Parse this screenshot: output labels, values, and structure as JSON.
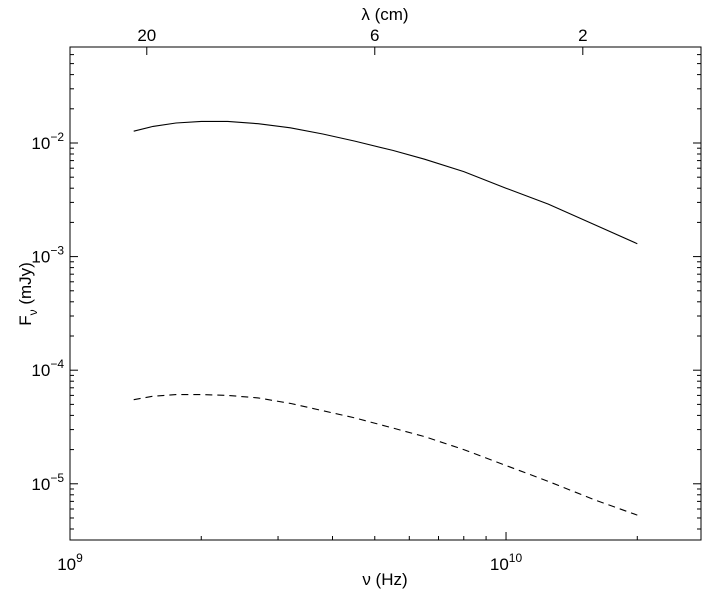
{
  "chart_data": {
    "type": "line",
    "x_scale": "log",
    "y_scale": "log",
    "xlabel": "ν (Hz)",
    "ylabel": "F",
    "ylabel_sub": "ν",
    "ylabel_unit": " (mJy)",
    "top_axis_label": "λ (cm)",
    "xlim": [
      1000000000.0,
      28000000000.0
    ],
    "ylim": [
      3.2e-06,
      0.07
    ],
    "x_ticks": [
      {
        "value": 1000000000.0,
        "base": "10",
        "exp": "9"
      },
      {
        "value": 10000000000.0,
        "base": "10",
        "exp": "10"
      }
    ],
    "y_ticks": [
      {
        "value": 1e-05,
        "base": "10",
        "exp": "−5"
      },
      {
        "value": 0.0001,
        "base": "10",
        "exp": "−4"
      },
      {
        "value": 0.001,
        "base": "10",
        "exp": "−3"
      },
      {
        "value": 0.01,
        "base": "10",
        "exp": "−2"
      }
    ],
    "top_ticks": [
      {
        "label": "20",
        "freq": 1500000000.0
      },
      {
        "label": "6",
        "freq": 5000000000.0
      },
      {
        "label": "2",
        "freq": 15000000000.0
      }
    ],
    "grid": false,
    "legend": "none",
    "series": [
      {
        "style": "solid",
        "color": "#000000",
        "x": [
          1400000000.0,
          1550000000.0,
          1750000000.0,
          2000000000.0,
          2300000000.0,
          2700000000.0,
          3200000000.0,
          3800000000.0,
          4500000000.0,
          5500000000.0,
          6500000000.0,
          8000000000.0,
          10000000000.0,
          12500000000.0,
          16000000000.0,
          20000000000.0
        ],
        "y": [
          0.0127,
          0.014,
          0.015,
          0.0155,
          0.0155,
          0.0148,
          0.0136,
          0.012,
          0.0104,
          0.0086,
          0.0072,
          0.0056,
          0.004,
          0.0029,
          0.0019,
          0.0013
        ]
      },
      {
        "style": "dashed",
        "color": "#000000",
        "x": [
          1400000000.0,
          1550000000.0,
          1750000000.0,
          2000000000.0,
          2300000000.0,
          2700000000.0,
          3200000000.0,
          3800000000.0,
          4500000000.0,
          5500000000.0,
          6500000000.0,
          8000000000.0,
          10000000000.0,
          12500000000.0,
          16000000000.0,
          20000000000.0
        ],
        "y": [
          5.5e-05,
          5.9e-05,
          6.1e-05,
          6.1e-05,
          6e-05,
          5.7e-05,
          5.1e-05,
          4.4e-05,
          3.8e-05,
          3.1e-05,
          2.6e-05,
          2e-05,
          1.45e-05,
          1.05e-05,
          7.2e-06,
          5.3e-06
        ]
      }
    ]
  }
}
